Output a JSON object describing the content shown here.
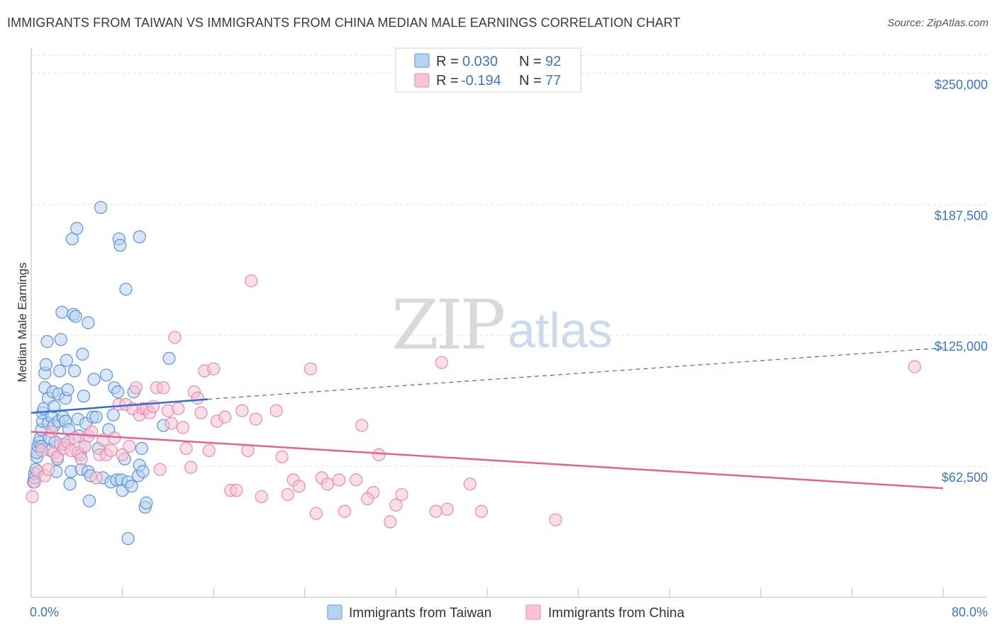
{
  "title": "IMMIGRANTS FROM TAIWAN VS IMMIGRANTS FROM CHINA MEDIAN MALE EARNINGS CORRELATION CHART",
  "source": "Source: ZipAtlas.com",
  "watermark": {
    "zip": "ZIP",
    "atlas": "atlas"
  },
  "colors": {
    "taiwan_fill": "#b8d2f2",
    "taiwan_stroke": "#5a93d8",
    "taiwan_line": "#2f6fd1",
    "china_fill": "#f8c3d3",
    "china_stroke": "#e98aa9",
    "china_line": "#e2638f",
    "accent_text": "#3b76c4",
    "grid": "#e2e2e2"
  },
  "legend": {
    "rows": [
      {
        "r_label": "R = ",
        "r_value": "0.030",
        "n_label": "N = ",
        "n_value": "92"
      },
      {
        "r_label": "R = ",
        "r_value": "-0.194",
        "n_label": "N = ",
        "n_value": "77"
      }
    ]
  },
  "chart_data": {
    "type": "scatter",
    "title": "IMMIGRANTS FROM TAIWAN VS IMMIGRANTS FROM CHINA MEDIAN MALE EARNINGS CORRELATION CHART",
    "xlabel": "",
    "ylabel": "Median Male Earnings",
    "xlim": [
      0,
      80
    ],
    "ylim": [
      0,
      262000
    ],
    "x_tick_labels": [
      {
        "value": 0,
        "label": "0.0%"
      },
      {
        "value": 80,
        "label": "80.0%"
      }
    ],
    "y_ticks": [
      {
        "value": 62500,
        "label": "$62,500"
      },
      {
        "value": 125000,
        "label": "$125,000"
      },
      {
        "value": 187500,
        "label": "$187,500"
      },
      {
        "value": 250000,
        "label": "$250,000"
      }
    ],
    "x_minor_ticks": [
      0,
      8,
      16,
      24,
      32,
      40,
      48,
      56,
      64,
      72,
      80
    ],
    "series": [
      {
        "name": "Immigrants from Taiwan",
        "r": 0.03,
        "n": 92,
        "trend": {
          "x0": 0,
          "y0": 88000,
          "x1": 15.5,
          "y1": 94500,
          "x_end": 80,
          "y_end": 119000
        },
        "points": [
          [
            0.2,
            55000
          ],
          [
            0.3,
            57000
          ],
          [
            0.3,
            59000
          ],
          [
            0.4,
            61000
          ],
          [
            0.5,
            67000
          ],
          [
            0.5,
            69000
          ],
          [
            0.6,
            72000
          ],
          [
            0.7,
            74000
          ],
          [
            0.8,
            76000
          ],
          [
            0.9,
            72000
          ],
          [
            0.9,
            80000
          ],
          [
            1.0,
            84000
          ],
          [
            1.0,
            88000
          ],
          [
            1.1,
            90000
          ],
          [
            1.2,
            100000
          ],
          [
            1.2,
            107000
          ],
          [
            1.3,
            111000
          ],
          [
            1.4,
            122000
          ],
          [
            1.5,
            95000
          ],
          [
            1.5,
            83000
          ],
          [
            1.6,
            76000
          ],
          [
            1.7,
            70000
          ],
          [
            1.8,
            86000
          ],
          [
            1.9,
            98000
          ],
          [
            2.0,
            91000
          ],
          [
            2.0,
            82000
          ],
          [
            2.1,
            74000
          ],
          [
            2.2,
            60000
          ],
          [
            2.3,
            66000
          ],
          [
            2.4,
            84000
          ],
          [
            2.4,
            97000
          ],
          [
            2.5,
            108000
          ],
          [
            2.6,
            123000
          ],
          [
            2.7,
            136000
          ],
          [
            2.8,
            86000
          ],
          [
            2.9,
            73000
          ],
          [
            3.0,
            95000
          ],
          [
            3.0,
            84000
          ],
          [
            3.1,
            113000
          ],
          [
            3.2,
            99000
          ],
          [
            3.3,
            80000
          ],
          [
            3.4,
            54000
          ],
          [
            3.5,
            60000
          ],
          [
            3.6,
            171000
          ],
          [
            3.7,
            135000
          ],
          [
            3.8,
            108000
          ],
          [
            3.9,
            134000
          ],
          [
            4.0,
            176000
          ],
          [
            4.1,
            85000
          ],
          [
            4.2,
            77000
          ],
          [
            4.3,
            68000
          ],
          [
            4.4,
            61000
          ],
          [
            4.5,
            116000
          ],
          [
            4.6,
            96000
          ],
          [
            4.7,
            72000
          ],
          [
            4.8,
            83000
          ],
          [
            5.0,
            131000
          ],
          [
            5.0,
            60000
          ],
          [
            5.1,
            46000
          ],
          [
            5.2,
            58000
          ],
          [
            5.4,
            86000
          ],
          [
            5.5,
            104000
          ],
          [
            5.7,
            86000
          ],
          [
            5.9,
            71000
          ],
          [
            6.1,
            186000
          ],
          [
            6.3,
            57000
          ],
          [
            6.6,
            106000
          ],
          [
            6.8,
            80000
          ],
          [
            7.0,
            55000
          ],
          [
            7.2,
            87000
          ],
          [
            7.3,
            100000
          ],
          [
            7.5,
            56000
          ],
          [
            7.6,
            98000
          ],
          [
            7.7,
            171000
          ],
          [
            7.8,
            168000
          ],
          [
            7.9,
            56000
          ],
          [
            8.0,
            51000
          ],
          [
            8.2,
            66000
          ],
          [
            8.3,
            147000
          ],
          [
            8.5,
            55000
          ],
          [
            8.5,
            28000
          ],
          [
            8.8,
            53000
          ],
          [
            9.0,
            98000
          ],
          [
            9.4,
            58000
          ],
          [
            9.5,
            63000
          ],
          [
            9.8,
            60000
          ],
          [
            9.5,
            172000
          ],
          [
            9.7,
            71000
          ],
          [
            10.0,
            43000
          ],
          [
            10.1,
            45000
          ],
          [
            11.6,
            82000
          ],
          [
            12.1,
            114000
          ]
        ]
      },
      {
        "name": "Immigrants from China",
        "r": -0.194,
        "n": 77,
        "trend": {
          "x0": 0,
          "y0": 79000,
          "x1": 80,
          "y1": 52000
        },
        "points": [
          [
            0.1,
            48000
          ],
          [
            0.3,
            55000
          ],
          [
            0.6,
            60000
          ],
          [
            0.9,
            70000
          ],
          [
            1.2,
            58000
          ],
          [
            1.5,
            61000
          ],
          [
            1.8,
            79000
          ],
          [
            2.0,
            69000
          ],
          [
            2.3,
            67000
          ],
          [
            2.6,
            73000
          ],
          [
            2.9,
            71000
          ],
          [
            3.2,
            74000
          ],
          [
            3.5,
            70000
          ],
          [
            3.8,
            76000
          ],
          [
            4.1,
            69000
          ],
          [
            4.4,
            66000
          ],
          [
            4.7,
            72000
          ],
          [
            5.0,
            77000
          ],
          [
            5.3,
            79000
          ],
          [
            5.7,
            57000
          ],
          [
            6.0,
            68000
          ],
          [
            6.3,
            75000
          ],
          [
            6.6,
            68000
          ],
          [
            7.0,
            70000
          ],
          [
            7.3,
            76000
          ],
          [
            7.7,
            92000
          ],
          [
            8.0,
            68000
          ],
          [
            8.3,
            92000
          ],
          [
            8.6,
            72000
          ],
          [
            8.9,
            90000
          ],
          [
            9.2,
            100000
          ],
          [
            9.5,
            87000
          ],
          [
            9.8,
            90000
          ],
          [
            10.1,
            90000
          ],
          [
            10.4,
            88000
          ],
          [
            10.7,
            91000
          ],
          [
            11.0,
            100000
          ],
          [
            11.3,
            61000
          ],
          [
            11.6,
            100000
          ],
          [
            12.0,
            89000
          ],
          [
            12.3,
            83000
          ],
          [
            12.6,
            124000
          ],
          [
            12.9,
            90000
          ],
          [
            13.3,
            81000
          ],
          [
            13.6,
            71000
          ],
          [
            14.0,
            62000
          ],
          [
            14.3,
            98000
          ],
          [
            14.6,
            95000
          ],
          [
            14.9,
            88000
          ],
          [
            15.2,
            108000
          ],
          [
            15.6,
            70000
          ],
          [
            16.0,
            109000
          ],
          [
            16.3,
            84000
          ],
          [
            17.0,
            86000
          ],
          [
            17.5,
            51000
          ],
          [
            18.0,
            51000
          ],
          [
            18.5,
            89000
          ],
          [
            19.0,
            70000
          ],
          [
            19.3,
            151000
          ],
          [
            19.7,
            85000
          ],
          [
            20.2,
            48000
          ],
          [
            21.5,
            89000
          ],
          [
            22.0,
            67000
          ],
          [
            22.5,
            49000
          ],
          [
            23.0,
            56000
          ],
          [
            23.5,
            53000
          ],
          [
            24.5,
            109000
          ],
          [
            25.0,
            40000
          ],
          [
            25.5,
            57000
          ],
          [
            26.0,
            54000
          ],
          [
            27.0,
            56000
          ],
          [
            27.5,
            41000
          ],
          [
            28.5,
            56000
          ],
          [
            30.0,
            50000
          ],
          [
            32.0,
            44000
          ],
          [
            35.5,
            41000
          ],
          [
            38.5,
            54000
          ]
        ],
        "extra_points": [
          [
            29.5,
            47000
          ],
          [
            30.5,
            68000
          ],
          [
            31.5,
            36000
          ],
          [
            32.5,
            49000
          ],
          [
            36.0,
            112000
          ],
          [
            36.5,
            42000
          ],
          [
            39.5,
            41000
          ],
          [
            46.0,
            37000
          ],
          [
            77.5,
            110000
          ],
          [
            29.0,
            82000
          ]
        ]
      }
    ]
  },
  "bottom_legend": [
    {
      "label": "Immigrants from Taiwan"
    },
    {
      "label": "Immigrants from China"
    }
  ]
}
